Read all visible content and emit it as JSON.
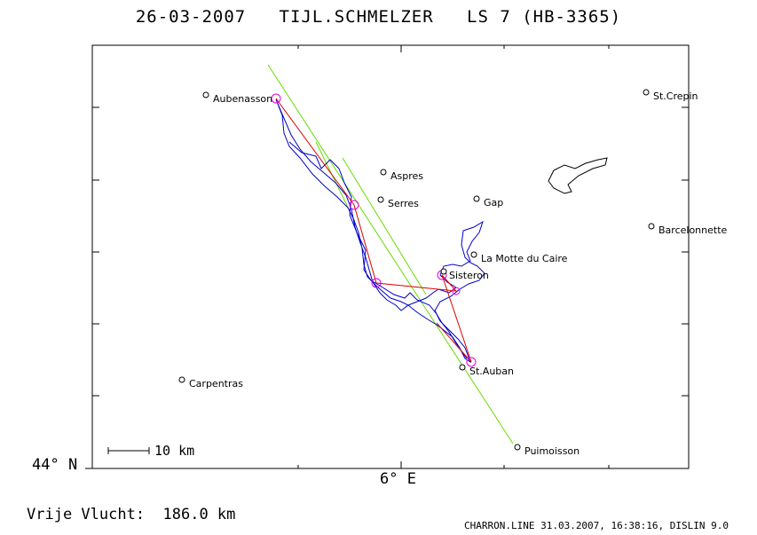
{
  "header": {
    "date": "26-03-2007",
    "pilot": "TIJL.SCHMELZER",
    "glider": "LS 7 (HB-3365)"
  },
  "axes": {
    "lat_label": "44° N",
    "lon_label": "6° E",
    "scale_label": "10 km"
  },
  "footer": {
    "distance": "Vrije Vlucht:  186.0 km",
    "credits": "CHARRON.LINE 31.03.2007, 16:38:16, DISLIN 9.0"
  },
  "colors": {
    "track": "#0000cc",
    "task_line": "#e00000",
    "sector_line": "#66dd00",
    "turnpoint": "#dd00dd"
  },
  "towns": [
    {
      "name": "Aubenasson"
    },
    {
      "name": "St.Crepin"
    },
    {
      "name": "Aspres"
    },
    {
      "name": "Serres"
    },
    {
      "name": "Gap"
    },
    {
      "name": "Barcelonnette"
    },
    {
      "name": "La Motte du Caire"
    },
    {
      "name": "Sisteron"
    },
    {
      "name": "St.Auban"
    },
    {
      "name": "Carpentras"
    },
    {
      "name": "Puimoisson"
    }
  ]
}
